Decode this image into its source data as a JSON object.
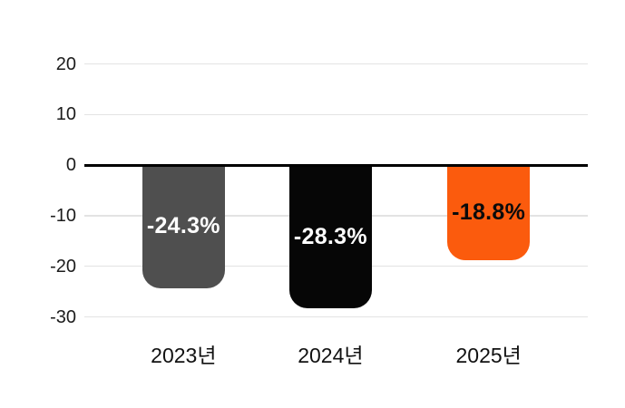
{
  "chart_data": {
    "type": "bar",
    "title": "",
    "xlabel": "",
    "ylabel": "",
    "categories": [
      "2023년",
      "2024년",
      "2025년"
    ],
    "values": [
      -24.3,
      -28.3,
      -18.8
    ],
    "bar_labels": [
      "-24.3%",
      "-28.3%",
      "-18.8%"
    ],
    "bar_colors": [
      "#4F4F4F",
      "#060606",
      "#FB5B0D"
    ],
    "bar_label_colors": [
      "#FFFFFF",
      "#FFFFFF",
      "#0B0B0B"
    ],
    "unit": "%",
    "yticks": [
      20,
      10,
      0,
      -10,
      -20,
      -30
    ],
    "ylim": [
      -30,
      20
    ],
    "baseline": 0,
    "grid": true,
    "legend": false
  },
  "style": {
    "background": "#FFFFFF",
    "gridline_color": "#E3E3E3",
    "zero_line_color": "#000000",
    "tick_label_color": "#1C1C1C",
    "category_label_color": "#111111"
  }
}
